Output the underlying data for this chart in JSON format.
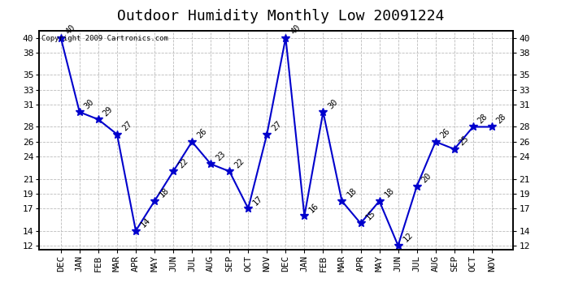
{
  "title": "Outdoor Humidity Monthly Low 20091224",
  "copyright": "Copyright 2009 Cartronics.com",
  "categories": [
    "DEC",
    "JAN",
    "FEB",
    "MAR",
    "APR",
    "MAY",
    "JUN",
    "JUL",
    "AUG",
    "SEP",
    "OCT",
    "NOV",
    "DEC",
    "JAN",
    "FEB",
    "MAR",
    "APR",
    "MAY",
    "JUN",
    "JUL",
    "AUG",
    "SEP",
    "OCT",
    "NOV"
  ],
  "values": [
    40,
    30,
    29,
    27,
    14,
    18,
    22,
    26,
    23,
    22,
    17,
    27,
    40,
    16,
    30,
    18,
    15,
    18,
    12,
    20,
    26,
    25,
    28,
    28
  ],
  "line_color": "#0000cc",
  "marker_color": "#0000cc",
  "bg_color": "#ffffff",
  "plot_bg_color": "#ffffff",
  "grid_color": "#bbbbbb",
  "title_fontsize": 13,
  "tick_fontsize": 8,
  "yticks": [
    12,
    14,
    17,
    19,
    21,
    24,
    26,
    28,
    31,
    33,
    35,
    38,
    40
  ],
  "ylim": [
    11.5,
    41
  ],
  "annotation_fontsize": 7.5
}
